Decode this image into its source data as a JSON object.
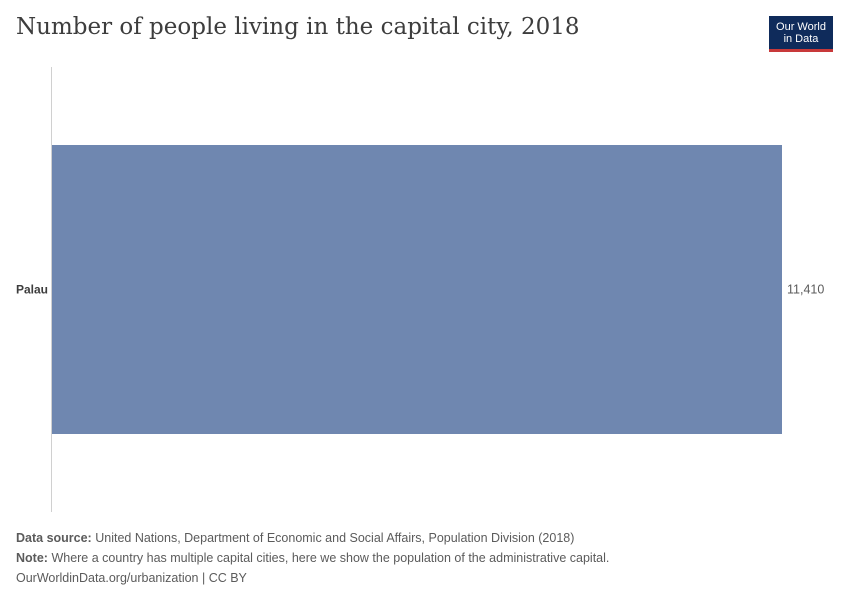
{
  "header": {
    "title": "Number of people living in the capital city, 2018"
  },
  "logo": {
    "line1": "Our World",
    "line2": "in Data"
  },
  "chart_data": {
    "type": "bar",
    "orientation": "horizontal",
    "title": "Number of people living in the capital city, 2018",
    "categories": [
      "Palau"
    ],
    "values": [
      11410
    ],
    "value_labels": [
      "11,410"
    ],
    "xlim": [
      0,
      11410
    ],
    "bar_color": "#6f87b0",
    "grid": false
  },
  "footer": {
    "source_label": "Data source:",
    "source_text": "United Nations, Department of Economic and Social Affairs, Population Division (2018)",
    "note_label": "Note:",
    "note_text": "Where a country has multiple capital cities, here we show the population of the administrative capital.",
    "credit": "OurWorldinData.org/urbanization | CC BY"
  }
}
